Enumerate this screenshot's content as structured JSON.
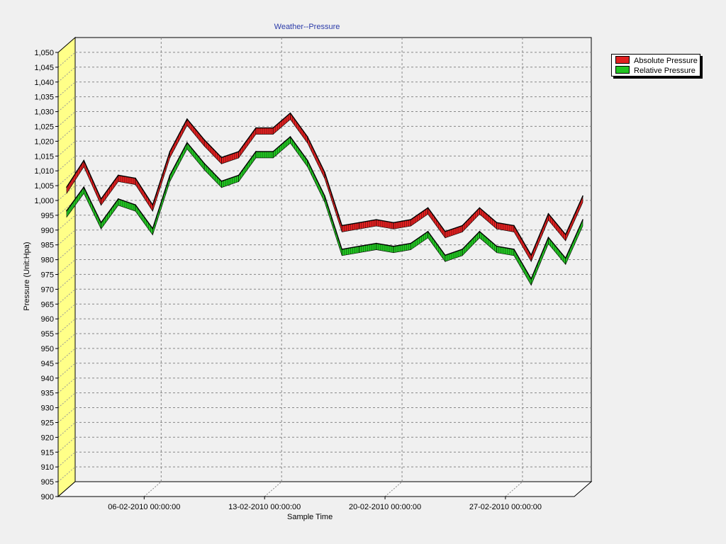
{
  "colors": {
    "background": "#f0f0f0",
    "plot_background": "#f0f0f0",
    "left_wall": "#ffff88",
    "title": "#2a3aa8",
    "absolute": "#e02020",
    "relative": "#22c422"
  },
  "chart_data": {
    "type": "area",
    "title": "Weather--Pressure",
    "xlabel": "Sample Time",
    "ylabel": "Pressure (Unit:Hpa)",
    "ylim": [
      900,
      1050
    ],
    "y_ticks": [
      "1,050",
      "1,045",
      "1,040",
      "1,035",
      "1,030",
      "1,025",
      "1,020",
      "1,015",
      "1,010",
      "1,005",
      "1,000",
      "995",
      "990",
      "985",
      "980",
      "975",
      "970",
      "965",
      "960",
      "955",
      "950",
      "945",
      "940",
      "935",
      "930",
      "925",
      "920",
      "915",
      "910",
      "905",
      "900"
    ],
    "x_tick_labels": [
      "06-02-2010 00:00:00",
      "13-02-2010 00:00:00",
      "20-02-2010 00:00:00",
      "27-02-2010 00:00:00"
    ],
    "grid": true,
    "legend_position": "top-right",
    "x_dates": [
      "2010-02-01",
      "2010-02-02",
      "2010-02-03",
      "2010-02-04",
      "2010-02-05",
      "2010-02-06",
      "2010-02-07",
      "2010-02-08",
      "2010-02-09",
      "2010-02-10",
      "2010-02-11",
      "2010-02-12",
      "2010-02-13",
      "2010-02-14",
      "2010-02-15",
      "2010-02-16",
      "2010-02-17",
      "2010-02-18",
      "2010-02-19",
      "2010-02-20",
      "2010-02-21",
      "2010-02-22",
      "2010-02-23",
      "2010-02-24",
      "2010-02-25",
      "2010-02-26",
      "2010-02-27",
      "2010-02-28",
      "2010-03-01",
      "2010-03-02",
      "2010-03-03"
    ],
    "series": [
      {
        "name": "Absolute Pressure",
        "color": "#e02020",
        "values": [
          1002,
          1011,
          998,
          1006,
          1005,
          996,
          1014,
          1025,
          1018,
          1012,
          1014,
          1022,
          1022,
          1027,
          1019,
          1007,
          989,
          990,
          991,
          990,
          991,
          995,
          987,
          989,
          995,
          990,
          989,
          979,
          993,
          986,
          999
        ]
      },
      {
        "name": "Relative Pressure",
        "color": "#22c422",
        "values": [
          994,
          1002,
          990,
          998,
          996,
          988,
          1006,
          1017,
          1010,
          1004,
          1006,
          1014,
          1014,
          1019,
          1011,
          999,
          981,
          982,
          983,
          982,
          983,
          987,
          979,
          981,
          987,
          982,
          981,
          971,
          985,
          978,
          991
        ]
      }
    ]
  }
}
